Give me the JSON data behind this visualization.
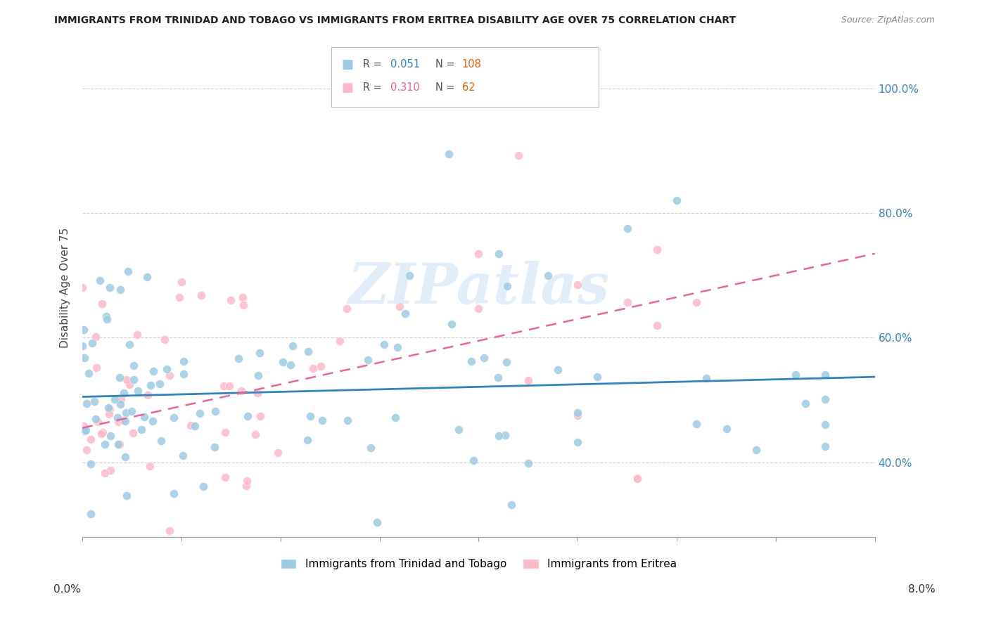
{
  "title": "IMMIGRANTS FROM TRINIDAD AND TOBAGO VS IMMIGRANTS FROM ERITREA DISABILITY AGE OVER 75 CORRELATION CHART",
  "source": "Source: ZipAtlas.com",
  "ylabel": "Disability Age Over 75",
  "legend_blue_label": "Immigrants from Trinidad and Tobago",
  "legend_pink_label": "Immigrants from Eritrea",
  "blue_color": "#9ecae1",
  "pink_color": "#fcb9c8",
  "blue_line_color": "#3182bd",
  "pink_line_color": "#e8649a",
  "watermark": "ZIPatlas",
  "blue_R": 0.051,
  "blue_N": 108,
  "pink_R": 0.31,
  "pink_N": 62,
  "xmin": 0.0,
  "xmax": 0.08,
  "ymin": 0.28,
  "ymax": 1.08,
  "yticks": [
    0.4,
    0.6,
    0.8,
    1.0
  ],
  "ytick_labels": [
    "40.0%",
    "60.0%",
    "80.0%",
    "100.0%"
  ],
  "blue_scatter_seed": 12,
  "pink_scatter_seed": 7
}
